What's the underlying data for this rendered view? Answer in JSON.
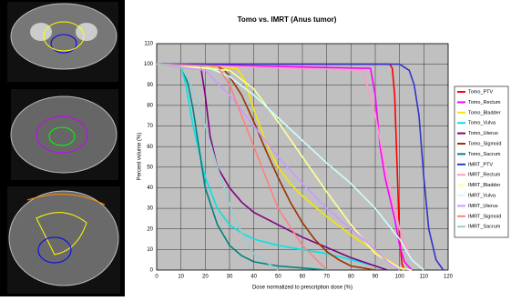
{
  "chart_data": {
    "type": "line",
    "title": "Tomo vs. IMRT (Anus tumor)",
    "x_label": "Dose normalized to prescription dose (%)",
    "y_label": "Percent volume (%)",
    "xlim": [
      0,
      120
    ],
    "xticks": [
      0,
      10,
      20,
      30,
      40,
      50,
      60,
      70,
      80,
      90,
      100,
      110,
      120
    ],
    "ylim": [
      0,
      110
    ],
    "yticks": [
      0,
      10,
      20,
      30,
      40,
      50,
      60,
      70,
      80,
      90,
      100,
      110
    ],
    "grid": true,
    "legend": "right",
    "series": [
      {
        "name": "Tomo_PTV",
        "color": "#ff0000",
        "x": [
          0,
          96,
          97,
          98,
          99,
          100,
          101,
          102
        ],
        "values": [
          100,
          100,
          98,
          85,
          50,
          15,
          3,
          0
        ]
      },
      {
        "name": "Tomo_Rectum",
        "color": "#ff00ff",
        "x": [
          0,
          88,
          90,
          92,
          94,
          96,
          98,
          100,
          102,
          105
        ],
        "values": [
          100,
          98,
          85,
          60,
          45,
          35,
          25,
          12,
          4,
          0
        ]
      },
      {
        "name": "Tomo_Bladder",
        "color": "#f5e600",
        "x": [
          0,
          33,
          36,
          40,
          45,
          50,
          55,
          60,
          70,
          80,
          90,
          95,
          100,
          102
        ],
        "values": [
          100,
          98,
          93,
          78,
          62,
          50,
          42,
          36,
          26,
          17,
          9,
          5,
          1,
          0
        ]
      },
      {
        "name": "Tomo_Vulva",
        "color": "#00e5e5",
        "x": [
          0,
          10,
          12,
          15,
          20,
          25,
          30,
          35,
          40,
          50,
          60,
          70,
          80,
          90,
          95
        ],
        "values": [
          100,
          100,
          90,
          70,
          45,
          30,
          22,
          18,
          15,
          12,
          10,
          8,
          5,
          2,
          0
        ]
      },
      {
        "name": "Tomo_Uterus",
        "color": "#800080",
        "x": [
          0,
          18,
          20,
          22,
          25,
          30,
          35,
          40,
          50,
          60,
          70,
          80,
          90,
          95
        ],
        "values": [
          100,
          100,
          85,
          65,
          50,
          40,
          33,
          28,
          22,
          16,
          11,
          6,
          2,
          0
        ]
      },
      {
        "name": "Tomo_Sigmoid",
        "color": "#993300",
        "x": [
          0,
          20,
          25,
          28,
          30,
          35,
          40,
          45,
          50,
          55,
          60,
          65,
          70,
          75,
          80,
          85,
          90
        ],
        "values": [
          100,
          100,
          99,
          97,
          94,
          85,
          72,
          58,
          45,
          33,
          23,
          15,
          9,
          5,
          2,
          1,
          0
        ]
      },
      {
        "name": "Tomo_Sacrum",
        "color": "#008080",
        "x": [
          0,
          10,
          13,
          15,
          18,
          20,
          25,
          30,
          35,
          40,
          50,
          60,
          70
        ],
        "values": [
          100,
          100,
          90,
          78,
          55,
          40,
          22,
          12,
          7,
          4,
          2,
          1,
          0
        ]
      },
      {
        "name": "IMRT_PTV",
        "color": "#3333cc",
        "x": [
          0,
          100,
          104,
          106,
          108,
          110,
          112,
          115,
          118
        ],
        "values": [
          100,
          100,
          97,
          90,
          75,
          45,
          20,
          5,
          0
        ]
      },
      {
        "name": "IMRT_Rectum",
        "color": "#ff99cc",
        "x": [
          0,
          85,
          90,
          95,
          100,
          105,
          110
        ],
        "values": [
          100,
          97,
          75,
          45,
          20,
          5,
          0
        ]
      },
      {
        "name": "IMRT_Bladder",
        "color": "#ffff99",
        "x": [
          0,
          30,
          40,
          50,
          60,
          70,
          80,
          90,
          100,
          105
        ],
        "values": [
          100,
          97,
          88,
          72,
          55,
          38,
          22,
          8,
          1,
          0
        ]
      },
      {
        "name": "IMRT_Vulva",
        "color": "#ccffff",
        "x": [
          0,
          20,
          30,
          40,
          50,
          60,
          70,
          80,
          90,
          100,
          105,
          110
        ],
        "values": [
          100,
          99,
          94,
          85,
          74,
          63,
          52,
          42,
          30,
          15,
          5,
          0
        ]
      },
      {
        "name": "IMRT_Uterus",
        "color": "#cc99ff",
        "x": [
          0,
          20,
          30,
          40,
          50,
          60,
          70,
          80,
          90,
          95,
          100
        ],
        "values": [
          100,
          97,
          85,
          70,
          55,
          42,
          30,
          20,
          10,
          4,
          0
        ]
      },
      {
        "name": "IMRT_Sigmoid",
        "color": "#ff8080",
        "x": [
          0,
          25,
          30,
          35,
          40,
          45,
          50,
          60,
          70
        ],
        "values": [
          100,
          99,
          90,
          75,
          60,
          45,
          30,
          12,
          0
        ]
      },
      {
        "name": "IMRT_Sacrum",
        "color": "#99cccc",
        "x": [
          0,
          10,
          15,
          20,
          25,
          30,
          35,
          40,
          50
        ],
        "values": [
          100,
          99,
          88,
          70,
          50,
          32,
          18,
          8,
          0
        ]
      }
    ]
  }
}
